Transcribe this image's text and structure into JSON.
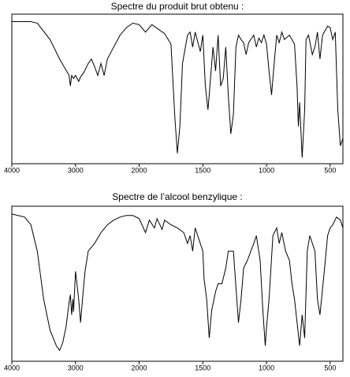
{
  "chart_data": [
    {
      "type": "line",
      "title": "Spectre du produit brut obtenu :",
      "color": "#000000",
      "xlim": [
        4000,
        400
      ],
      "ylim": [
        0,
        100
      ],
      "xticks": [
        4000,
        3000,
        2000,
        1500,
        1000,
        500
      ],
      "grid": false,
      "x": [
        4000,
        3700,
        3600,
        3400,
        3250,
        3100,
        3080,
        3060,
        3030,
        3000,
        2950,
        2920,
        2870,
        2800,
        2750,
        2700,
        2650,
        2600,
        2550,
        2500,
        2400,
        2300,
        2200,
        2100,
        2000,
        1950,
        1900,
        1800,
        1750,
        1720,
        1700,
        1680,
        1660,
        1620,
        1600,
        1580,
        1560,
        1520,
        1500,
        1480,
        1460,
        1450,
        1420,
        1400,
        1380,
        1360,
        1340,
        1320,
        1300,
        1280,
        1260,
        1240,
        1220,
        1200,
        1180,
        1160,
        1140,
        1100,
        1080,
        1060,
        1040,
        1020,
        1000,
        980,
        960,
        940,
        920,
        900,
        880,
        860,
        820,
        780,
        760,
        750,
        740,
        720,
        700,
        690,
        670,
        640,
        620,
        600,
        580,
        560,
        540,
        520,
        500,
        480,
        460,
        440,
        420,
        400
      ],
      "values": [
        95,
        95,
        94,
        83,
        70,
        59,
        52,
        59,
        57,
        59,
        55,
        58,
        61,
        67,
        70,
        65,
        59,
        67,
        59,
        70,
        78,
        86,
        91,
        94,
        93,
        88,
        93,
        87,
        80,
        31,
        7,
        25,
        67,
        86,
        88,
        78,
        88,
        75,
        86,
        52,
        36,
        46,
        78,
        62,
        86,
        52,
        57,
        78,
        46,
        20,
        33,
        78,
        86,
        83,
        81,
        73,
        81,
        86,
        78,
        84,
        81,
        86,
        80,
        62,
        46,
        67,
        86,
        81,
        88,
        83,
        86,
        80,
        52,
        25,
        41,
        4,
        36,
        83,
        86,
        73,
        78,
        88,
        70,
        86,
        89,
        92,
        91,
        83,
        88,
        36,
        12,
        17
      ]
    },
    {
      "type": "line",
      "title": "Spectre de l’alcool benzylique :",
      "color": "#000000",
      "xlim": [
        4000,
        400
      ],
      "ylim": [
        0,
        100
      ],
      "xticks": [
        4000,
        3000,
        2000,
        1500,
        1000,
        500
      ],
      "grid": false,
      "x": [
        4000,
        3800,
        3700,
        3600,
        3500,
        3400,
        3300,
        3250,
        3200,
        3150,
        3100,
        3080,
        3060,
        3040,
        3030,
        3000,
        2950,
        2920,
        2880,
        2850,
        2800,
        2700,
        2600,
        2500,
        2400,
        2300,
        2200,
        2100,
        2000,
        1950,
        1920,
        1880,
        1860,
        1820,
        1800,
        1750,
        1700,
        1650,
        1620,
        1600,
        1580,
        1560,
        1500,
        1490,
        1470,
        1450,
        1430,
        1400,
        1380,
        1350,
        1320,
        1300,
        1260,
        1220,
        1200,
        1180,
        1150,
        1100,
        1080,
        1050,
        1030,
        1010,
        1000,
        980,
        950,
        920,
        900,
        880,
        850,
        820,
        800,
        780,
        740,
        720,
        700,
        680,
        660,
        620,
        600,
        580,
        550,
        520,
        500,
        480,
        450,
        420,
        400
      ],
      "values": [
        95,
        93,
        88,
        71,
        40,
        20,
        10,
        7,
        12,
        22,
        38,
        43,
        30,
        40,
        32,
        58,
        40,
        25,
        45,
        58,
        71,
        76,
        83,
        88,
        91,
        93,
        94,
        94,
        92,
        83,
        91,
        86,
        92,
        85,
        91,
        88,
        86,
        83,
        76,
        81,
        71,
        86,
        71,
        53,
        40,
        15,
        33,
        45,
        50,
        50,
        60,
        71,
        71,
        25,
        40,
        60,
        65,
        76,
        81,
        65,
        35,
        10,
        22,
        40,
        81,
        86,
        76,
        83,
        71,
        65,
        50,
        40,
        10,
        30,
        15,
        71,
        81,
        71,
        40,
        30,
        55,
        81,
        86,
        88,
        93,
        91,
        86
      ]
    }
  ]
}
